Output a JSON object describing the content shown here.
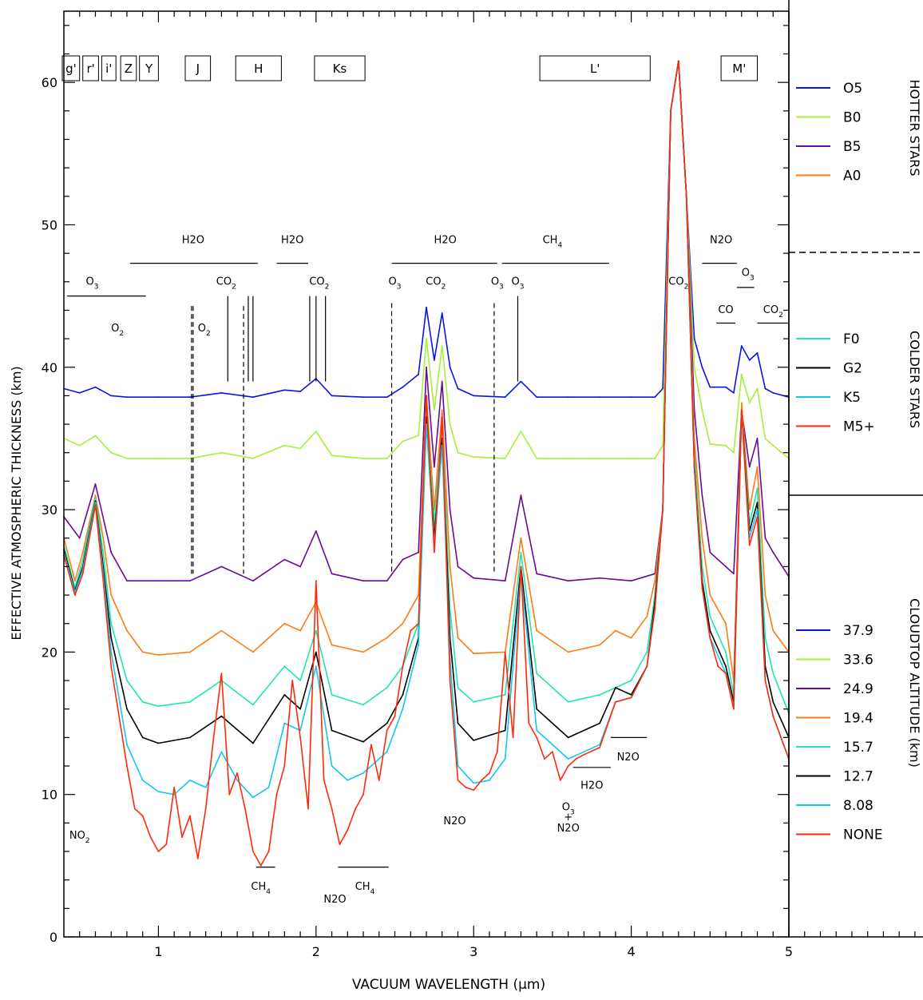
{
  "chart_data": {
    "type": "line",
    "xlabel": "VACUUM WAVELENGTH (μm)",
    "ylabel": "EFFECTIVE ATMOSPHERIC THICKNESS (km)",
    "xlim": [
      0.4,
      5.0
    ],
    "ylim": [
      0,
      65
    ],
    "x_ticks": [
      1,
      2,
      3,
      4,
      5
    ],
    "y_ticks": [
      0,
      10,
      20,
      30,
      40,
      50,
      60
    ],
    "filters": [
      {
        "label": "g'",
        "x0": 0.39,
        "x1": 0.5
      },
      {
        "label": "r'",
        "x0": 0.52,
        "x1": 0.62
      },
      {
        "label": "i'",
        "x0": 0.64,
        "x1": 0.73
      },
      {
        "label": "Z",
        "x0": 0.76,
        "x1": 0.86
      },
      {
        "label": "Y",
        "x0": 0.88,
        "x1": 1.0
      },
      {
        "label": "J",
        "x0": 1.17,
        "x1": 1.33
      },
      {
        "label": "H",
        "x0": 1.49,
        "x1": 1.78
      },
      {
        "label": "Ks",
        "x0": 1.99,
        "x1": 2.31
      },
      {
        "label": "L'",
        "x0": 3.42,
        "x1": 4.12
      },
      {
        "label": "M'",
        "x0": 4.57,
        "x1": 4.8
      }
    ],
    "molecule_labels": [
      {
        "text": "H2O",
        "x": 1.22,
        "y": 48.7,
        "bar": [
          0.82,
          1.63
        ],
        "bar_y": 47.3
      },
      {
        "text": "H2O",
        "x": 1.85,
        "y": 48.7,
        "bar": [
          1.75,
          1.95
        ],
        "bar_y": 47.3
      },
      {
        "text": "H2O",
        "x": 2.82,
        "y": 48.7,
        "bar": [
          2.48,
          3.15
        ],
        "bar_y": 47.3
      },
      {
        "text": "CH4",
        "x": 3.5,
        "y": 48.7,
        "bar": [
          3.18,
          3.86
        ],
        "bar_y": 47.3
      },
      {
        "text": "N2O",
        "x": 4.57,
        "y": 48.7,
        "bar": [
          4.45,
          4.67
        ],
        "bar_y": 47.3
      },
      {
        "text": "O3",
        "x": 0.58,
        "y": 45.8,
        "bar": [
          0.42,
          0.92
        ],
        "bar_y": 45.0
      },
      {
        "text": "CO2",
        "x": 1.43,
        "y": 45.8
      },
      {
        "text": "CO2",
        "x": 2.02,
        "y": 45.8
      },
      {
        "text": "O3",
        "x": 2.5,
        "y": 45.8
      },
      {
        "text": "CO2",
        "x": 2.76,
        "y": 45.8
      },
      {
        "text": "O3",
        "x": 3.15,
        "y": 45.8
      },
      {
        "text": "O3",
        "x": 3.28,
        "y": 45.8
      },
      {
        "text": "CO2",
        "x": 4.3,
        "y": 45.8
      },
      {
        "text": "O3",
        "x": 4.74,
        "y": 46.4,
        "bar": [
          4.67,
          4.78
        ],
        "bar_y": 45.6
      },
      {
        "text": "CO",
        "x": 4.6,
        "y": 43.8,
        "bar": [
          4.54,
          4.66
        ],
        "bar_y": 43.1
      },
      {
        "text": "CO2",
        "x": 4.9,
        "y": 43.8,
        "bar": [
          4.8,
          5.0
        ],
        "bar_y": 43.1
      },
      {
        "text": "O2",
        "x": 0.74,
        "y": 42.5
      },
      {
        "text": "O2",
        "x": 1.29,
        "y": 42.5
      },
      {
        "text": "NO2",
        "x": 0.5,
        "y": 6.9
      },
      {
        "text": "CH4",
        "x": 1.65,
        "y": 3.3,
        "bar": [
          1.62,
          1.74
        ],
        "bar_y": 4.9
      },
      {
        "text": "N2O",
        "x": 2.12,
        "y": 2.4
      },
      {
        "text": "CH4",
        "x": 2.31,
        "y": 3.3,
        "bar": [
          2.14,
          2.46
        ],
        "bar_y": 4.9
      },
      {
        "text": "N2O",
        "x": 2.88,
        "y": 7.9
      },
      {
        "text": "O3",
        "x": 3.6,
        "y": 8.9
      },
      {
        "text": "+",
        "x": 3.6,
        "y": 8.2
      },
      {
        "text": "N2O",
        "x": 3.6,
        "y": 7.4
      },
      {
        "text": "H2O",
        "x": 3.75,
        "y": 10.4,
        "bar": [
          3.63,
          3.87
        ],
        "bar_y": 11.9
      },
      {
        "text": "N2O",
        "x": 3.98,
        "y": 12.4,
        "bar": [
          3.87,
          4.1
        ],
        "bar_y": 14.0
      }
    ],
    "legend": {
      "groups": [
        {
          "title": "HOTTER STARS",
          "entries": [
            "O5",
            "B0",
            "B5",
            "A0"
          ],
          "colors": [
            "#0a14e6",
            "#a6f03a",
            "#6a0a96",
            "#ff7a10"
          ]
        },
        {
          "title": "COLDER STARS",
          "entries": [
            "F0",
            "G2",
            "K5",
            "M5+"
          ],
          "colors": [
            "#1ee6b4",
            "#000000",
            "#10c8f0",
            "#ff2a0a"
          ]
        },
        {
          "title": "CLOUDTOP ALTITUDE (km)",
          "entries": [
            "37.9",
            "33.6",
            "24.9",
            "19.4",
            "15.7",
            "12.7",
            "8.08",
            "NONE"
          ],
          "colors": [
            "#0a14e6",
            "#a6f03a",
            "#6a0a96",
            "#ff7a10",
            "#1ee6b4",
            "#000000",
            "#10c8f0",
            "#ff2a0a"
          ]
        }
      ]
    },
    "series": [
      {
        "name": "37.9",
        "color": "#0a14e6",
        "x": [
          0.4,
          0.5,
          0.6,
          0.7,
          0.8,
          1.0,
          1.2,
          1.4,
          1.6,
          1.8,
          1.9,
          2.0,
          2.1,
          2.3,
          2.45,
          2.55,
          2.65,
          2.7,
          2.75,
          2.8,
          2.85,
          2.9,
          3.0,
          3.2,
          3.3,
          3.4,
          3.6,
          3.8,
          4.0,
          4.15,
          4.2,
          4.25,
          4.3,
          4.35,
          4.4,
          4.45,
          4.5,
          4.6,
          4.65,
          4.7,
          4.75,
          4.8,
          4.85,
          4.9,
          5.0
        ],
        "y": [
          38.5,
          38.2,
          38.6,
          38.0,
          37.9,
          37.9,
          37.9,
          38.2,
          37.9,
          38.4,
          38.3,
          39.2,
          38.0,
          37.9,
          37.9,
          38.6,
          39.5,
          44.2,
          40.5,
          43.8,
          40.0,
          38.5,
          38.0,
          37.9,
          39.0,
          37.9,
          37.9,
          37.9,
          37.9,
          37.9,
          38.5,
          58.0,
          61.5,
          52.0,
          42.0,
          40.0,
          38.6,
          38.6,
          38.2,
          41.5,
          40.5,
          41.0,
          38.5,
          38.2,
          37.9
        ]
      },
      {
        "name": "33.6",
        "color": "#a6f03a",
        "x": [
          0.4,
          0.5,
          0.6,
          0.7,
          0.8,
          1.0,
          1.2,
          1.4,
          1.6,
          1.8,
          1.9,
          2.0,
          2.1,
          2.3,
          2.45,
          2.55,
          2.65,
          2.7,
          2.75,
          2.8,
          2.85,
          2.9,
          3.0,
          3.2,
          3.3,
          3.4,
          3.6,
          3.8,
          4.0,
          4.15,
          4.2,
          4.25,
          4.3,
          4.35,
          4.4,
          4.45,
          4.5,
          4.6,
          4.65,
          4.7,
          4.75,
          4.8,
          4.85,
          4.9,
          5.0
        ],
        "y": [
          35.0,
          34.5,
          35.2,
          34.0,
          33.6,
          33.6,
          33.6,
          34.0,
          33.6,
          34.5,
          34.3,
          35.5,
          33.8,
          33.6,
          33.6,
          34.8,
          35.2,
          42.0,
          37.0,
          41.5,
          36.0,
          34.0,
          33.7,
          33.6,
          35.5,
          33.6,
          33.6,
          33.6,
          33.6,
          33.6,
          34.5,
          58.0,
          61.5,
          52.0,
          40.0,
          37.0,
          34.6,
          34.5,
          34.0,
          39.5,
          37.5,
          38.5,
          35.0,
          34.5,
          33.6
        ]
      },
      {
        "name": "24.9",
        "color": "#6a0a96",
        "x": [
          0.4,
          0.5,
          0.6,
          0.7,
          0.8,
          1.0,
          1.2,
          1.4,
          1.6,
          1.8,
          1.9,
          2.0,
          2.1,
          2.3,
          2.45,
          2.55,
          2.65,
          2.7,
          2.75,
          2.8,
          2.85,
          2.9,
          3.0,
          3.2,
          3.3,
          3.4,
          3.6,
          3.8,
          4.0,
          4.15,
          4.2,
          4.25,
          4.3,
          4.35,
          4.4,
          4.45,
          4.5,
          4.6,
          4.65,
          4.7,
          4.75,
          4.8,
          4.85,
          4.9,
          5.0
        ],
        "y": [
          29.5,
          28.0,
          31.8,
          27.0,
          25.0,
          25.0,
          25.0,
          26.0,
          25.0,
          26.5,
          26.0,
          28.5,
          25.5,
          25.0,
          25.0,
          26.5,
          27.0,
          40.0,
          33.0,
          39.0,
          30.0,
          26.0,
          25.2,
          25.0,
          31.0,
          25.5,
          25.0,
          25.2,
          25.0,
          25.5,
          30.0,
          58.0,
          61.5,
          52.0,
          37.0,
          31.0,
          27.0,
          26.0,
          25.5,
          37.0,
          33.0,
          35.0,
          28.0,
          27.0,
          25.3
        ]
      },
      {
        "name": "19.4",
        "color": "#ff7a10",
        "x": [
          0.4,
          0.47,
          0.52,
          0.6,
          0.65,
          0.7,
          0.8,
          0.9,
          1.0,
          1.2,
          1.4,
          1.6,
          1.8,
          1.9,
          2.0,
          2.1,
          2.3,
          2.45,
          2.55,
          2.65,
          2.7,
          2.75,
          2.8,
          2.85,
          2.9,
          3.0,
          3.2,
          3.3,
          3.4,
          3.6,
          3.8,
          3.9,
          4.0,
          4.1,
          4.15,
          4.2,
          4.25,
          4.3,
          4.35,
          4.4,
          4.45,
          4.5,
          4.6,
          4.65,
          4.7,
          4.75,
          4.8,
          4.85,
          4.9,
          5.0
        ],
        "y": [
          28.0,
          25.0,
          27.0,
          31.0,
          28.0,
          24.0,
          21.5,
          20.0,
          19.8,
          20.0,
          21.5,
          20.0,
          22.0,
          21.5,
          23.5,
          20.5,
          20.0,
          21.0,
          22.0,
          24.0,
          38.0,
          30.0,
          37.0,
          26.0,
          21.0,
          19.9,
          20.0,
          28.0,
          21.5,
          20.0,
          20.5,
          21.5,
          21.0,
          22.5,
          25.0,
          30.0,
          58.0,
          61.5,
          52.0,
          35.0,
          28.0,
          24.0,
          22.0,
          18.0,
          37.5,
          30.0,
          33.0,
          24.0,
          21.5,
          20.0
        ]
      },
      {
        "name": "15.7",
        "color": "#1ee6b4",
        "x": [
          0.4,
          0.47,
          0.52,
          0.6,
          0.65,
          0.7,
          0.8,
          0.9,
          1.0,
          1.2,
          1.4,
          1.6,
          1.8,
          1.9,
          2.0,
          2.1,
          2.3,
          2.45,
          2.55,
          2.65,
          2.7,
          2.75,
          2.8,
          2.85,
          2.9,
          3.0,
          3.2,
          3.3,
          3.4,
          3.6,
          3.8,
          3.9,
          4.0,
          4.1,
          4.15,
          4.2,
          4.25,
          4.3,
          4.35,
          4.4,
          4.45,
          4.5,
          4.6,
          4.65,
          4.7,
          4.75,
          4.8,
          4.85,
          4.9,
          5.0
        ],
        "y": [
          27.5,
          24.5,
          26.5,
          30.8,
          27.0,
          22.0,
          18.0,
          16.5,
          16.2,
          16.5,
          18.0,
          16.3,
          19.0,
          18.0,
          21.5,
          17.0,
          16.3,
          17.5,
          19.0,
          22.0,
          37.0,
          29.0,
          36.0,
          23.0,
          17.5,
          16.5,
          17.0,
          27.0,
          18.5,
          16.5,
          17.0,
          17.5,
          18.0,
          20.0,
          24.0,
          30.0,
          58.0,
          61.5,
          52.0,
          34.0,
          26.0,
          22.5,
          20.0,
          17.0,
          37.0,
          29.0,
          31.5,
          21.0,
          18.5,
          15.7
        ]
      },
      {
        "name": "12.7",
        "color": "#000000",
        "x": [
          0.4,
          0.47,
          0.52,
          0.6,
          0.65,
          0.7,
          0.8,
          0.9,
          1.0,
          1.2,
          1.4,
          1.6,
          1.8,
          1.9,
          2.0,
          2.1,
          2.3,
          2.45,
          2.55,
          2.65,
          2.7,
          2.75,
          2.8,
          2.85,
          2.9,
          3.0,
          3.2,
          3.3,
          3.4,
          3.6,
          3.8,
          3.9,
          4.0,
          4.1,
          4.15,
          4.2,
          4.25,
          4.3,
          4.35,
          4.4,
          4.45,
          4.5,
          4.6,
          4.65,
          4.7,
          4.75,
          4.8,
          4.85,
          4.9,
          5.0
        ],
        "y": [
          27.2,
          24.3,
          26.0,
          30.6,
          26.0,
          21.0,
          16.0,
          14.0,
          13.6,
          14.0,
          15.5,
          13.6,
          17.0,
          16.0,
          20.0,
          14.5,
          13.7,
          15.0,
          17.0,
          21.0,
          36.5,
          28.0,
          35.0,
          21.0,
          15.0,
          13.8,
          14.5,
          26.0,
          16.0,
          14.0,
          15.0,
          17.5,
          17.0,
          19.0,
          23.5,
          30.0,
          58.0,
          61.5,
          52.0,
          33.0,
          25.0,
          21.5,
          19.0,
          16.5,
          37.0,
          28.5,
          30.5,
          19.0,
          16.5,
          14.0
        ]
      },
      {
        "name": "8.08",
        "color": "#10c8f0",
        "x": [
          0.4,
          0.47,
          0.52,
          0.6,
          0.65,
          0.7,
          0.8,
          0.9,
          1.0,
          1.1,
          1.2,
          1.3,
          1.4,
          1.5,
          1.6,
          1.7,
          1.8,
          1.9,
          2.0,
          2.1,
          2.2,
          2.3,
          2.45,
          2.55,
          2.65,
          2.7,
          2.75,
          2.8,
          2.85,
          2.9,
          3.0,
          3.1,
          3.2,
          3.3,
          3.4,
          3.6,
          3.7,
          3.8,
          3.9,
          4.0,
          4.1,
          4.15,
          4.2,
          4.25,
          4.3,
          4.35,
          4.4,
          4.45,
          4.5,
          4.6,
          4.65,
          4.7,
          4.75,
          4.8,
          4.85,
          4.9,
          5.0
        ],
        "y": [
          27.0,
          24.2,
          25.8,
          30.5,
          25.5,
          20.0,
          13.5,
          11.0,
          10.2,
          10.0,
          11.0,
          10.5,
          13.0,
          11.0,
          9.8,
          10.5,
          15.0,
          14.5,
          19.0,
          12.0,
          11.0,
          11.5,
          13.0,
          16.0,
          20.5,
          36.0,
          27.5,
          34.5,
          19.5,
          12.0,
          10.8,
          11.0,
          12.5,
          25.5,
          14.5,
          12.5,
          13.0,
          13.5,
          16.5,
          16.8,
          19.0,
          23.0,
          30.0,
          58.0,
          61.5,
          52.0,
          33.0,
          24.5,
          21.0,
          18.5,
          16.0,
          37.0,
          28.0,
          30.0,
          18.0,
          15.5,
          12.5
        ]
      },
      {
        "name": "NONE",
        "color": "#ff2a0a",
        "x": [
          0.4,
          0.47,
          0.52,
          0.6,
          0.65,
          0.7,
          0.8,
          0.85,
          0.9,
          0.95,
          1.0,
          1.05,
          1.1,
          1.15,
          1.2,
          1.25,
          1.3,
          1.35,
          1.4,
          1.45,
          1.5,
          1.55,
          1.6,
          1.65,
          1.7,
          1.75,
          1.8,
          1.85,
          1.9,
          1.95,
          2.0,
          2.05,
          2.1,
          2.15,
          2.2,
          2.25,
          2.3,
          2.35,
          2.4,
          2.45,
          2.5,
          2.55,
          2.6,
          2.65,
          2.7,
          2.75,
          2.8,
          2.85,
          2.9,
          2.95,
          3.0,
          3.05,
          3.1,
          3.15,
          3.2,
          3.25,
          3.3,
          3.35,
          3.4,
          3.45,
          3.5,
          3.55,
          3.6,
          3.65,
          3.7,
          3.8,
          3.9,
          4.0,
          4.1,
          4.15,
          4.2,
          4.25,
          4.3,
          4.35,
          4.4,
          4.45,
          4.5,
          4.55,
          4.6,
          4.65,
          4.7,
          4.75,
          4.8,
          4.85,
          4.9,
          4.95,
          5.0
        ],
        "y": [
          26.8,
          24.0,
          25.5,
          30.3,
          25.0,
          19.0,
          12.0,
          9.0,
          8.5,
          7.0,
          6.0,
          6.5,
          10.5,
          7.0,
          8.5,
          5.5,
          9.0,
          14.0,
          18.5,
          10.0,
          11.5,
          9.0,
          6.0,
          5.0,
          6.0,
          10.0,
          12.0,
          18.0,
          14.0,
          9.0,
          25.0,
          11.0,
          9.0,
          6.5,
          7.5,
          9.0,
          10.0,
          13.5,
          11.0,
          14.5,
          15.5,
          19.0,
          21.5,
          22.0,
          38.0,
          27.0,
          36.5,
          18.0,
          11.0,
          10.5,
          10.3,
          11.0,
          11.5,
          13.0,
          20.0,
          14.0,
          26.0,
          15.0,
          14.0,
          12.5,
          13.0,
          11.0,
          12.0,
          12.5,
          12.8,
          13.3,
          16.5,
          16.8,
          19.0,
          23.0,
          30.0,
          58.0,
          61.5,
          52.0,
          33.0,
          24.5,
          21.0,
          19.0,
          18.5,
          16.0,
          37.0,
          27.5,
          29.5,
          18.0,
          15.5,
          14.0,
          12.5
        ]
      }
    ]
  }
}
